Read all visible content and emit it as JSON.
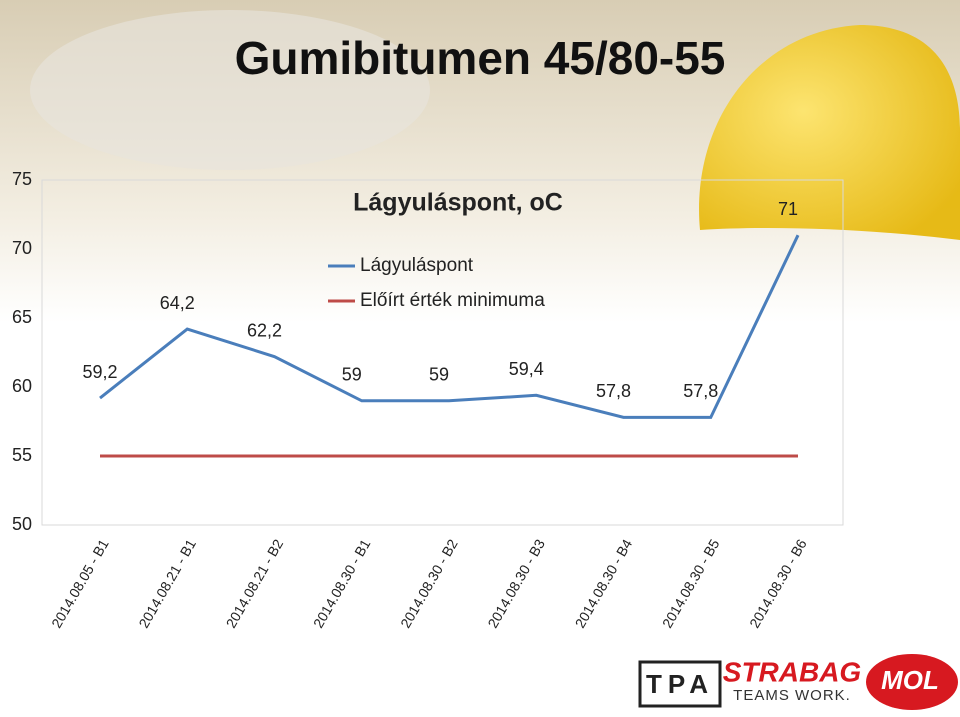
{
  "header": {
    "title": "Gumibitumen 45/80-55"
  },
  "chart_data": {
    "type": "line",
    "title": "Lágyuláspont, oC",
    "categories": [
      "2014.08.05 - B1",
      "2014.08.21 - B1",
      "2014.08.21 - B2",
      "2014.08.30 - B1",
      "2014.08.30 - B2",
      "2014.08.30 - B3",
      "2014.08.30 - B4",
      "2014.08.30 - B5",
      "2014.08.30 - B6"
    ],
    "series": [
      {
        "name": "Lágyuláspont",
        "color": "#4a7ebb",
        "values": [
          59.2,
          64.2,
          62.2,
          59,
          59,
          59.4,
          57.8,
          57.8,
          71
        ],
        "value_labels": [
          "59,2",
          "64,2",
          "62,2",
          "59",
          "59",
          "59,4",
          "57,8",
          "57,8",
          "71"
        ]
      },
      {
        "name": "Előírt érték minimuma",
        "color": "#be4b48",
        "values": [
          55,
          55,
          55,
          55,
          55,
          55,
          55,
          55,
          55
        ]
      }
    ],
    "ylim": [
      50,
      75
    ],
    "yticks": [
      50,
      55,
      60,
      65,
      70,
      75
    ],
    "grid": false
  },
  "logos": [
    "TPA",
    "STRABAG",
    "TEAMS WORK.",
    "MOL"
  ]
}
